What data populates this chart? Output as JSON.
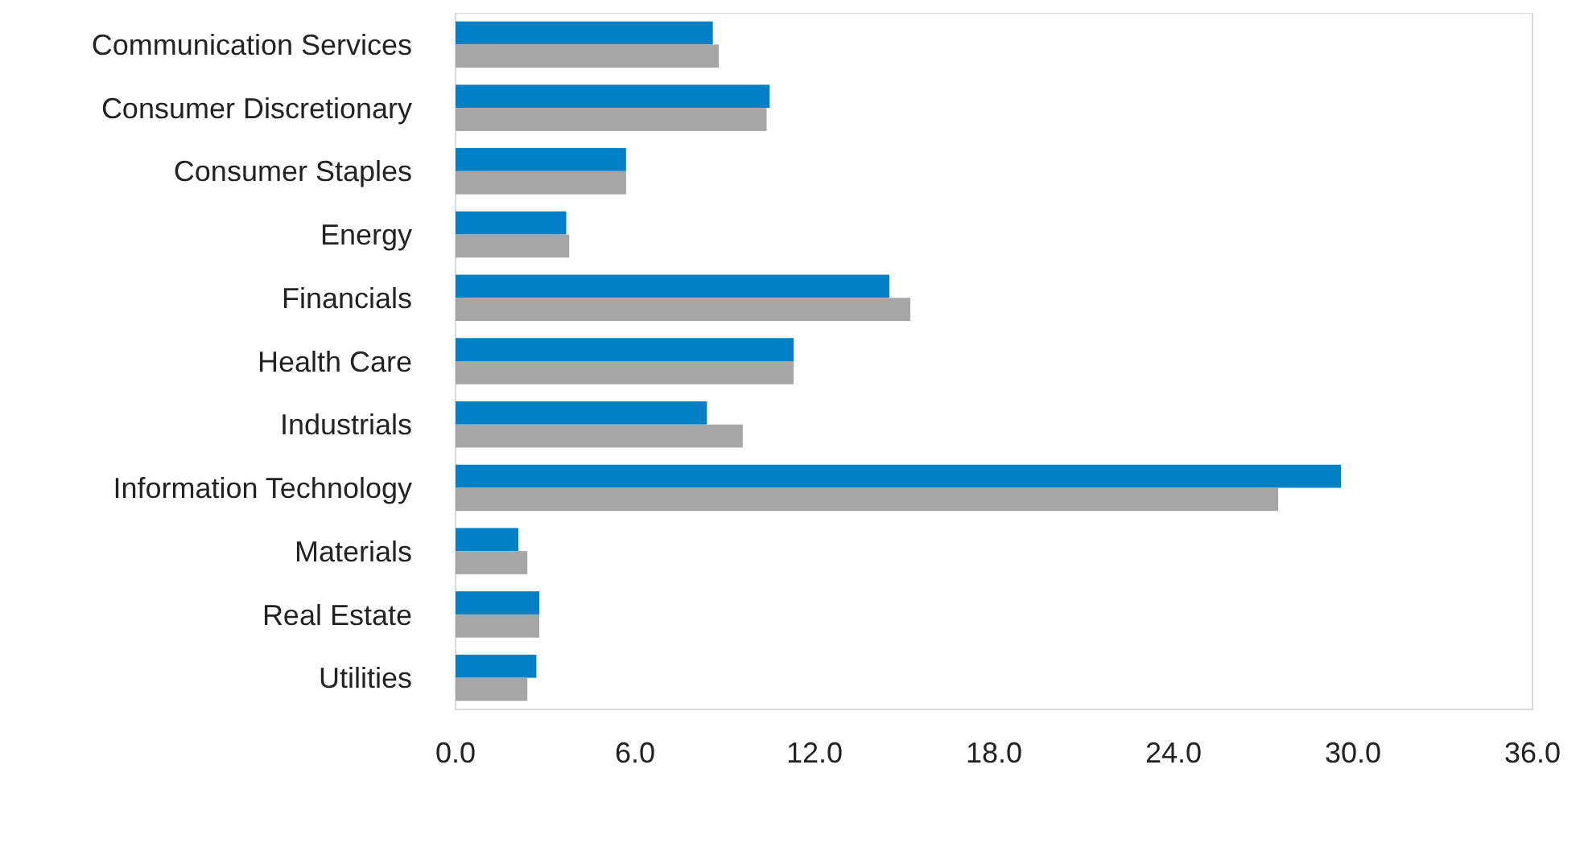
{
  "chart_data": {
    "type": "bar",
    "orientation": "horizontal",
    "categories": [
      "Communication Services",
      "Consumer Discretionary",
      "Consumer Staples",
      "Energy",
      "Financials",
      "Health Care",
      "Industrials",
      "Information Technology",
      "Materials",
      "Real Estate",
      "Utilities"
    ],
    "series": [
      {
        "color": "#0080c6",
        "values": [
          8.6,
          10.5,
          5.7,
          3.7,
          14.5,
          11.3,
          8.4,
          29.6,
          2.1,
          2.8,
          2.7
        ]
      },
      {
        "color": "#a6a6a6",
        "values": [
          8.8,
          10.4,
          5.7,
          3.8,
          15.2,
          11.3,
          9.6,
          27.5,
          2.4,
          2.8,
          2.4
        ]
      }
    ],
    "xlim": [
      0,
      36
    ],
    "xticks": [
      {
        "value": 0,
        "label": "0.0"
      },
      {
        "value": 6,
        "label": "6.0"
      },
      {
        "value": 12,
        "label": "12.0"
      },
      {
        "value": 18,
        "label": "18.0"
      },
      {
        "value": 24,
        "label": "24.0"
      },
      {
        "value": 30,
        "label": "30.0"
      },
      {
        "value": 36,
        "label": "36.0"
      }
    ],
    "grid": false,
    "legend": false
  }
}
